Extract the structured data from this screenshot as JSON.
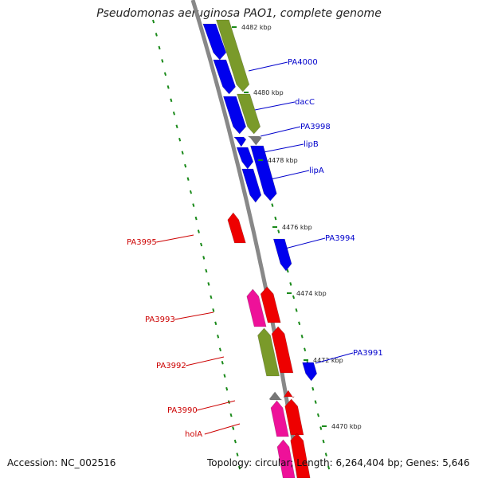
{
  "title": "Pseudomonas aeruginosa PAO1, complete genome",
  "footer": {
    "accession": "Accession: NC_002516",
    "summary": "Topology: circular; Length: 6,264,404 bp; Genes: 5,646"
  },
  "colors": {
    "forward_label": "#0000cc",
    "reverse_label": "#cc0000",
    "blue_gene": "#0000ee",
    "red_gene": "#ee0000",
    "pink_gene": "#ee1199",
    "green_gene": "#7a9a2a",
    "gray_gene": "#777777",
    "backbone": "#888888",
    "dot": "#1a8a1a"
  },
  "scale_ticks": [
    "4482 kbp",
    "4480 kbp",
    "4478 kbp",
    "4476 kbp",
    "4474 kbp",
    "4472 kbp",
    "4470 kbp"
  ],
  "gene_labels": [
    {
      "text": "PA4000",
      "strand": "forward"
    },
    {
      "text": "dacC",
      "strand": "forward"
    },
    {
      "text": "PA3998",
      "strand": "forward"
    },
    {
      "text": "lipB",
      "strand": "forward"
    },
    {
      "text": "lipA",
      "strand": "forward"
    },
    {
      "text": "PA3995",
      "strand": "reverse"
    },
    {
      "text": "PA3994",
      "strand": "forward"
    },
    {
      "text": "PA3993",
      "strand": "reverse"
    },
    {
      "text": "PA3991",
      "strand": "forward"
    },
    {
      "text": "PA3992",
      "strand": "reverse"
    },
    {
      "text": "PA3990",
      "strand": "reverse"
    },
    {
      "text": "holA",
      "strand": "reverse"
    }
  ]
}
